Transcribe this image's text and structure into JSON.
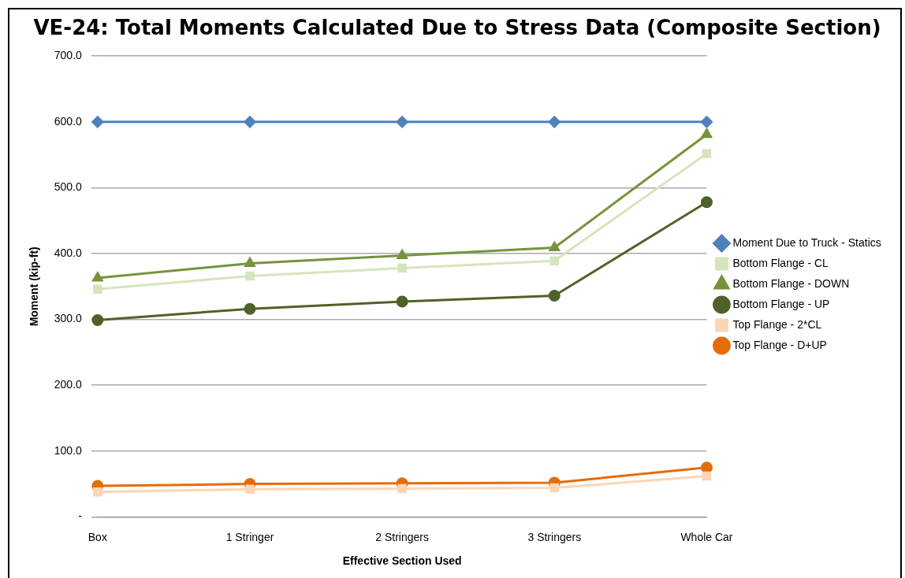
{
  "chart_data": {
    "type": "line",
    "title": "VE-24: Total Moments Calculated Due to Stress Data (Composite Section)",
    "xlabel": "Effective Section Used",
    "ylabel": "Moment (kip-ft)",
    "categories": [
      "Box",
      "1 Stringer",
      "2 Stringers",
      "3 Stringers",
      "Whole Car"
    ],
    "ylim": [
      0,
      700
    ],
    "yticks": [
      {
        "value": 0,
        "label": "-"
      },
      {
        "value": 100,
        "label": "100.0"
      },
      {
        "value": 200,
        "label": "200.0"
      },
      {
        "value": 300,
        "label": "300.0"
      },
      {
        "value": 400,
        "label": "400.0"
      },
      {
        "value": 500,
        "label": "500.0"
      },
      {
        "value": 600,
        "label": "600.0"
      },
      {
        "value": 700,
        "label": "700.0"
      }
    ],
    "grid": "y",
    "legend": "right",
    "series": [
      {
        "name": "Moment Due to Truck - Statics",
        "color": "#4f81bd",
        "marker": "diamond",
        "values": [
          600,
          600,
          600,
          600,
          600
        ]
      },
      {
        "name": "Bottom Flange - CL",
        "color": "#d7e4bd",
        "marker": "square",
        "values": [
          346,
          366,
          378,
          389,
          552
        ]
      },
      {
        "name": "Bottom Flange - DOWN",
        "color": "#77933c",
        "marker": "triangle",
        "values": [
          363,
          385,
          397,
          409,
          581
        ]
      },
      {
        "name": "Bottom Flange - UP",
        "color": "#4f6228",
        "marker": "circle",
        "values": [
          299,
          316,
          327,
          336,
          478
        ]
      },
      {
        "name": "Top Flange - 2*CL",
        "color": "#fcd5b5",
        "marker": "square",
        "values": [
          38,
          42,
          43,
          44,
          62
        ]
      },
      {
        "name": "Top Flange - D+UP",
        "color": "#e46c0a",
        "marker": "circle",
        "values": [
          47,
          50,
          51,
          52,
          75
        ]
      }
    ]
  }
}
